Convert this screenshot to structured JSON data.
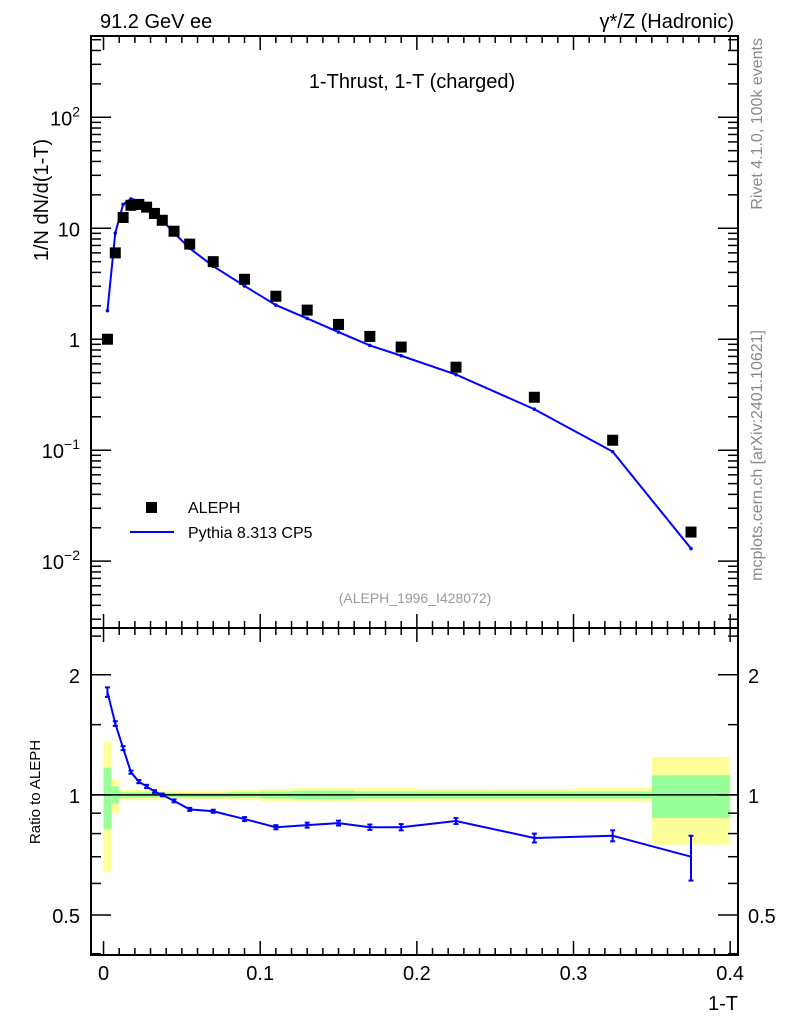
{
  "header": {
    "left": "91.2 GeV ee",
    "right": "γ*/Z (Hadronic)"
  },
  "side_text": {
    "rivet": "Rivet 4.1.0,  100k events",
    "mcplots": "mcplots.cern.ch [arXiv:2401.10621]"
  },
  "analysis_id": "(ALEPH_1996_I428072)",
  "chart_data": [
    {
      "type": "scatter",
      "title": "1-Thrust, 1-T (charged)",
      "xlabel": "1-T",
      "ylabel": "1/N  dN/d(1-T)",
      "yscale": "log",
      "xlim": [
        -0.008,
        0.405
      ],
      "ylim": [
        0.0025,
        540
      ],
      "x_ticks": [
        "0",
        "0.1",
        "0.2",
        "0.3",
        "0.4"
      ],
      "x_tick_values": [
        0,
        0.1,
        0.2,
        0.3,
        0.4
      ],
      "y_ticks": [
        {
          "base": "10",
          "exp": "2",
          "v": 100
        },
        {
          "base": "10",
          "exp": "",
          "v": 10
        },
        {
          "base": "1",
          "exp": "",
          "v": 1
        },
        {
          "base": "10",
          "exp": "−1",
          "v": 0.1
        },
        {
          "base": "10",
          "exp": "−2",
          "v": 0.01
        }
      ],
      "legend": {
        "placement": "bottom-left",
        "entries": [
          "ALEPH",
          "Pythia 8.313 CP5"
        ]
      },
      "bin_edges": [
        0,
        0.005,
        0.01,
        0.015,
        0.02,
        0.025,
        0.03,
        0.035,
        0.04,
        0.05,
        0.06,
        0.08,
        0.1,
        0.12,
        0.14,
        0.16,
        0.18,
        0.2,
        0.25,
        0.3,
        0.35,
        0.4
      ],
      "x": [
        0.0025,
        0.0075,
        0.0125,
        0.0175,
        0.0225,
        0.0275,
        0.0325,
        0.0375,
        0.045,
        0.055,
        0.07,
        0.09,
        0.11,
        0.13,
        0.15,
        0.17,
        0.19,
        0.225,
        0.275,
        0.325,
        0.375
      ],
      "series": [
        {
          "name": "ALEPH",
          "color": "#000000",
          "values": [
            1.0,
            6.0,
            12.5,
            16.1,
            16.4,
            15.5,
            13.6,
            11.8,
            9.4,
            7.2,
            5.0,
            3.47,
            2.44,
            1.83,
            1.36,
            1.06,
            0.85,
            0.56,
            0.3,
            0.123,
            0.0183
          ]
        },
        {
          "name": "Pythia 8.313 CP5",
          "color": "#0000ff",
          "values": [
            1.81,
            9.06,
            16.4,
            18.4,
            17.7,
            16.3,
            13.9,
            11.8,
            9.1,
            6.6,
            4.55,
            3.02,
            2.03,
            1.54,
            1.16,
            0.88,
            0.71,
            0.48,
            0.234,
            0.097,
            0.013
          ]
        }
      ]
    },
    {
      "type": "line",
      "ylabel": "Ratio to ALEPH",
      "yscale": "log",
      "ylim": [
        0.397,
        2.62
      ],
      "y_ticks": [
        {
          "label": "2",
          "v": 2
        },
        {
          "label": "1",
          "v": 1
        },
        {
          "label": "0.5",
          "v": 0.5
        }
      ],
      "ratio": [
        1.81,
        1.51,
        1.31,
        1.14,
        1.08,
        1.05,
        1.02,
        1.0,
        0.966,
        0.92,
        0.91,
        0.87,
        0.83,
        0.84,
        0.85,
        0.83,
        0.83,
        0.86,
        0.78,
        0.79,
        0.7
      ],
      "ratio_err": [
        0.05,
        0.02,
        0.015,
        0.01,
        0.01,
        0.01,
        0.008,
        0.008,
        0.008,
        0.008,
        0.008,
        0.01,
        0.01,
        0.012,
        0.012,
        0.013,
        0.015,
        0.015,
        0.02,
        0.025,
        0.09
      ],
      "band_total": [
        [
          0.64,
          1.36
        ],
        [
          0.9,
          1.09
        ],
        [
          0.97,
          1.03
        ],
        [
          0.97,
          1.03
        ],
        [
          0.97,
          1.03
        ],
        [
          0.97,
          1.03
        ],
        [
          0.97,
          1.03
        ],
        [
          0.975,
          1.025
        ],
        [
          0.975,
          1.025
        ],
        [
          0.975,
          1.025
        ],
        [
          0.975,
          1.025
        ],
        [
          0.97,
          1.03
        ],
        [
          0.965,
          1.035
        ],
        [
          0.96,
          1.04
        ],
        [
          0.96,
          1.04
        ],
        [
          0.96,
          1.04
        ],
        [
          0.96,
          1.04
        ],
        [
          0.965,
          1.035
        ],
        [
          0.965,
          1.035
        ],
        [
          0.96,
          1.04
        ],
        [
          0.75,
          1.245
        ]
      ],
      "band_stat": [
        [
          0.82,
          1.17
        ],
        [
          0.95,
          1.05
        ],
        [
          0.985,
          1.015
        ],
        [
          0.985,
          1.015
        ],
        [
          0.985,
          1.015
        ],
        [
          0.985,
          1.015
        ],
        [
          0.985,
          1.015
        ],
        [
          0.988,
          1.012
        ],
        [
          0.988,
          1.012
        ],
        [
          0.988,
          1.012
        ],
        [
          0.988,
          1.012
        ],
        [
          0.985,
          1.015
        ],
        [
          0.98,
          1.02
        ],
        [
          0.975,
          1.025
        ],
        [
          0.975,
          1.025
        ],
        [
          0.98,
          1.02
        ],
        [
          0.98,
          1.02
        ],
        [
          0.98,
          1.02
        ],
        [
          0.98,
          1.02
        ],
        [
          0.98,
          1.02
        ],
        [
          0.875,
          1.12
        ]
      ],
      "band_colors": {
        "total": "#ffff99",
        "stat": "#99ff99"
      }
    }
  ]
}
